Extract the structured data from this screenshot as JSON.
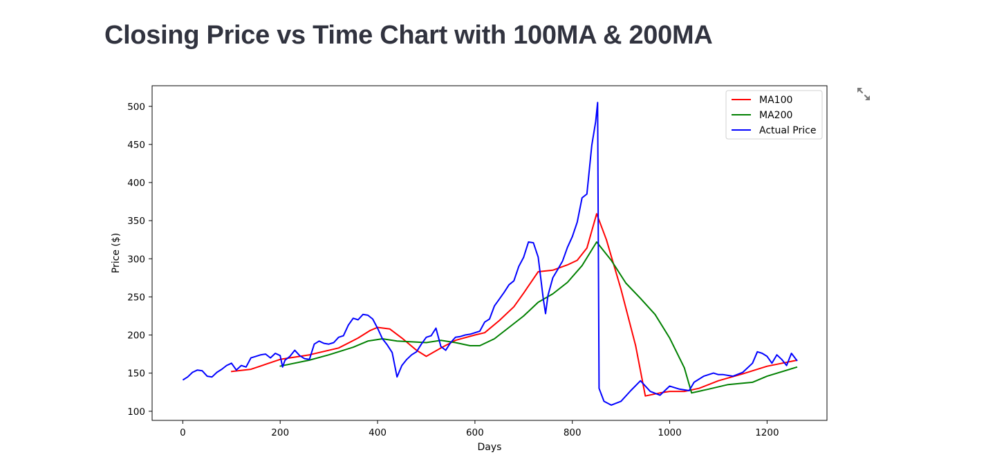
{
  "page": {
    "title": "Closing Price vs Time Chart with 100MA & 200MA"
  },
  "toolbar": {
    "expand_icon": "fullscreen-expand-icon"
  },
  "chart_data": {
    "type": "line",
    "xlabel": "Days",
    "ylabel": "Price ($)",
    "xlim": [
      -63,
      1323
    ],
    "ylim": [
      88,
      527
    ],
    "xticks": [
      0,
      200,
      400,
      600,
      800,
      1000,
      1200
    ],
    "yticks": [
      100,
      150,
      200,
      250,
      300,
      350,
      400,
      450,
      500
    ],
    "grid": false,
    "legend": "top-right",
    "series": [
      {
        "name": "MA100",
        "color": "#ff0000",
        "points": [
          [
            99,
            152
          ],
          [
            140,
            155
          ],
          [
            200,
            168
          ],
          [
            260,
            174
          ],
          [
            320,
            183
          ],
          [
            360,
            196
          ],
          [
            385,
            206
          ],
          [
            400,
            210
          ],
          [
            425,
            208
          ],
          [
            450,
            196
          ],
          [
            480,
            180
          ],
          [
            500,
            172
          ],
          [
            530,
            183
          ],
          [
            560,
            193
          ],
          [
            600,
            200
          ],
          [
            620,
            203
          ],
          [
            650,
            219
          ],
          [
            680,
            237
          ],
          [
            700,
            255
          ],
          [
            730,
            283
          ],
          [
            760,
            285
          ],
          [
            790,
            292
          ],
          [
            810,
            298
          ],
          [
            830,
            314
          ],
          [
            850,
            359
          ],
          [
            870,
            325
          ],
          [
            900,
            260
          ],
          [
            930,
            186
          ],
          [
            950,
            120
          ],
          [
            980,
            124
          ],
          [
            1000,
            126
          ],
          [
            1030,
            126
          ],
          [
            1060,
            130
          ],
          [
            1100,
            140
          ],
          [
            1150,
            149
          ],
          [
            1200,
            159
          ],
          [
            1262,
            167
          ]
        ]
      },
      {
        "name": "MA200",
        "color": "#008000",
        "points": [
          [
            199,
            159
          ],
          [
            260,
            167
          ],
          [
            300,
            174
          ],
          [
            350,
            184
          ],
          [
            380,
            192
          ],
          [
            410,
            195
          ],
          [
            440,
            192
          ],
          [
            470,
            191
          ],
          [
            500,
            190
          ],
          [
            530,
            193
          ],
          [
            560,
            190
          ],
          [
            590,
            186
          ],
          [
            610,
            186
          ],
          [
            640,
            195
          ],
          [
            670,
            210
          ],
          [
            700,
            225
          ],
          [
            730,
            243
          ],
          [
            760,
            254
          ],
          [
            790,
            269
          ],
          [
            820,
            291
          ],
          [
            850,
            322
          ],
          [
            880,
            298
          ],
          [
            910,
            268
          ],
          [
            940,
            248
          ],
          [
            970,
            227
          ],
          [
            1000,
            196
          ],
          [
            1030,
            157
          ],
          [
            1045,
            124
          ],
          [
            1080,
            129
          ],
          [
            1120,
            135
          ],
          [
            1170,
            138
          ],
          [
            1200,
            146
          ],
          [
            1262,
            158
          ]
        ]
      },
      {
        "name": "Actual Price",
        "color": "#0000ff",
        "points": [
          [
            0,
            141
          ],
          [
            10,
            145
          ],
          [
            20,
            151
          ],
          [
            30,
            154
          ],
          [
            40,
            153
          ],
          [
            50,
            146
          ],
          [
            60,
            145
          ],
          [
            70,
            151
          ],
          [
            80,
            155
          ],
          [
            90,
            160
          ],
          [
            100,
            163
          ],
          [
            110,
            154
          ],
          [
            120,
            160
          ],
          [
            130,
            158
          ],
          [
            140,
            170
          ],
          [
            150,
            172
          ],
          [
            160,
            174
          ],
          [
            170,
            175
          ],
          [
            180,
            170
          ],
          [
            190,
            176
          ],
          [
            200,
            173
          ],
          [
            205,
            158
          ],
          [
            210,
            167
          ],
          [
            220,
            172
          ],
          [
            230,
            180
          ],
          [
            240,
            173
          ],
          [
            250,
            169
          ],
          [
            260,
            168
          ],
          [
            270,
            188
          ],
          [
            280,
            192
          ],
          [
            290,
            189
          ],
          [
            300,
            188
          ],
          [
            310,
            190
          ],
          [
            320,
            197
          ],
          [
            330,
            199
          ],
          [
            340,
            213
          ],
          [
            350,
            222
          ],
          [
            360,
            220
          ],
          [
            370,
            227
          ],
          [
            380,
            226
          ],
          [
            390,
            221
          ],
          [
            400,
            209
          ],
          [
            410,
            195
          ],
          [
            420,
            187
          ],
          [
            430,
            177
          ],
          [
            440,
            145
          ],
          [
            450,
            160
          ],
          [
            460,
            168
          ],
          [
            470,
            174
          ],
          [
            480,
            178
          ],
          [
            490,
            188
          ],
          [
            500,
            197
          ],
          [
            510,
            199
          ],
          [
            520,
            209
          ],
          [
            530,
            185
          ],
          [
            540,
            180
          ],
          [
            550,
            190
          ],
          [
            560,
            197
          ],
          [
            570,
            198
          ],
          [
            580,
            200
          ],
          [
            590,
            201
          ],
          [
            600,
            203
          ],
          [
            610,
            205
          ],
          [
            620,
            217
          ],
          [
            630,
            221
          ],
          [
            640,
            238
          ],
          [
            650,
            247
          ],
          [
            660,
            256
          ],
          [
            670,
            266
          ],
          [
            680,
            271
          ],
          [
            690,
            290
          ],
          [
            700,
            302
          ],
          [
            710,
            322
          ],
          [
            720,
            321
          ],
          [
            730,
            302
          ],
          [
            740,
            249
          ],
          [
            745,
            228
          ],
          [
            750,
            252
          ],
          [
            760,
            275
          ],
          [
            770,
            286
          ],
          [
            780,
            297
          ],
          [
            790,
            315
          ],
          [
            800,
            329
          ],
          [
            810,
            348
          ],
          [
            820,
            380
          ],
          [
            830,
            385
          ],
          [
            840,
            449
          ],
          [
            848,
            480
          ],
          [
            852,
            505
          ],
          [
            855,
            130
          ],
          [
            865,
            113
          ],
          [
            880,
            108
          ],
          [
            900,
            113
          ],
          [
            920,
            127
          ],
          [
            940,
            140
          ],
          [
            960,
            126
          ],
          [
            980,
            121
          ],
          [
            1000,
            133
          ],
          [
            1020,
            129
          ],
          [
            1040,
            127
          ],
          [
            1050,
            138
          ],
          [
            1070,
            146
          ],
          [
            1090,
            150
          ],
          [
            1100,
            148
          ],
          [
            1110,
            148
          ],
          [
            1130,
            146
          ],
          [
            1150,
            151
          ],
          [
            1170,
            163
          ],
          [
            1180,
            178
          ],
          [
            1190,
            176
          ],
          [
            1200,
            172
          ],
          [
            1210,
            163
          ],
          [
            1220,
            174
          ],
          [
            1230,
            168
          ],
          [
            1240,
            160
          ],
          [
            1250,
            176
          ],
          [
            1262,
            166
          ]
        ]
      }
    ]
  }
}
